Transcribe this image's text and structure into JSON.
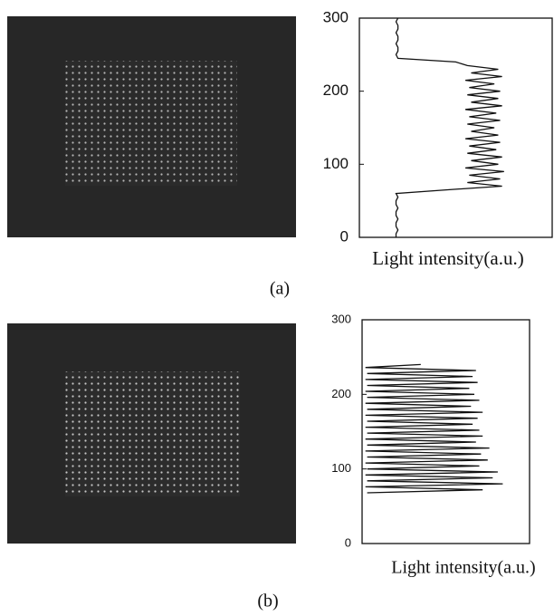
{
  "chart_data": [
    {
      "type": "line",
      "orientation": "vertical",
      "panel_label": "(a)",
      "axis_label": "Light intensity(a.u.)",
      "xlim": [
        0,
        300
      ],
      "xticks": [
        0,
        100,
        200,
        300
      ],
      "ylim": [
        0,
        1
      ],
      "color": "#111111",
      "x": [
        0,
        5,
        10,
        15,
        20,
        25,
        30,
        35,
        40,
        45,
        50,
        55,
        60,
        65,
        70,
        75,
        80,
        85,
        90,
        95,
        100,
        105,
        110,
        115,
        120,
        125,
        130,
        135,
        140,
        145,
        150,
        155,
        160,
        165,
        170,
        175,
        180,
        185,
        190,
        195,
        200,
        205,
        210,
        215,
        220,
        225,
        230,
        235,
        240,
        245,
        250,
        255,
        260,
        265,
        270,
        275,
        280,
        285,
        290,
        295,
        300
      ],
      "values": [
        0.19,
        0.19,
        0.2,
        0.19,
        0.19,
        0.2,
        0.19,
        0.19,
        0.2,
        0.19,
        0.19,
        0.2,
        0.19,
        0.45,
        0.74,
        0.56,
        0.73,
        0.57,
        0.75,
        0.55,
        0.72,
        0.58,
        0.74,
        0.56,
        0.71,
        0.57,
        0.73,
        0.55,
        0.72,
        0.58,
        0.7,
        0.56,
        0.73,
        0.57,
        0.71,
        0.55,
        0.74,
        0.58,
        0.72,
        0.56,
        0.73,
        0.57,
        0.7,
        0.55,
        0.74,
        0.58,
        0.72,
        0.56,
        0.5,
        0.2,
        0.19,
        0.2,
        0.2,
        0.19,
        0.2,
        0.2,
        0.19,
        0.2,
        0.2,
        0.19,
        0.2
      ]
    },
    {
      "type": "line",
      "orientation": "vertical",
      "panel_label": "(b)",
      "axis_label": "Light intensity(a.u.)",
      "xlim": [
        0,
        300
      ],
      "xticks": [
        0,
        100,
        200,
        300
      ],
      "ylim": [
        0,
        1
      ],
      "color": "#111111",
      "x": [
        68,
        72,
        76,
        80,
        84,
        88,
        92,
        96,
        100,
        104,
        108,
        112,
        116,
        120,
        124,
        128,
        132,
        136,
        140,
        144,
        148,
        152,
        156,
        160,
        164,
        168,
        172,
        176,
        180,
        184,
        188,
        192,
        196,
        200,
        204,
        208,
        212,
        216,
        220,
        224,
        228,
        232,
        236,
        240
      ],
      "values": [
        0.03,
        0.72,
        0.02,
        0.84,
        0.03,
        0.78,
        0.02,
        0.81,
        0.03,
        0.7,
        0.02,
        0.75,
        0.03,
        0.71,
        0.02,
        0.76,
        0.03,
        0.68,
        0.02,
        0.72,
        0.03,
        0.7,
        0.02,
        0.66,
        0.03,
        0.69,
        0.02,
        0.72,
        0.03,
        0.65,
        0.02,
        0.7,
        0.03,
        0.67,
        0.02,
        0.64,
        0.03,
        0.69,
        0.02,
        0.66,
        0.03,
        0.68,
        0.02,
        0.35
      ]
    }
  ]
}
